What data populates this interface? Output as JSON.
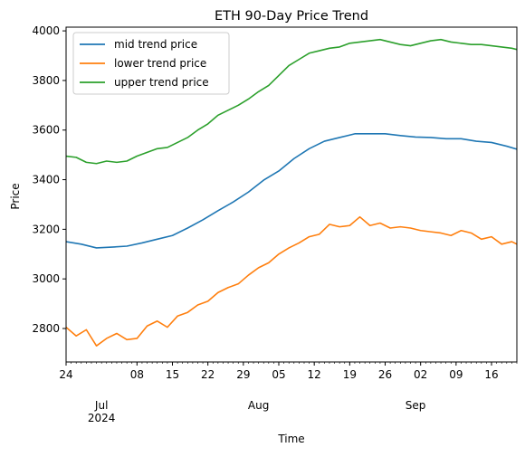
{
  "chart_data": {
    "type": "line",
    "title": "ETH 90-Day Price Trend",
    "xlabel": "Time",
    "ylabel": "Price",
    "x_start": "2024-06-24",
    "x_end": "2024-09-21",
    "xlim": [
      "2024-06-24",
      "2024-09-21"
    ],
    "ylim": [
      2665,
      4015
    ],
    "y_ticks": [
      2800,
      3000,
      3200,
      3400,
      3600,
      3800,
      4000
    ],
    "x_ticks": [
      {
        "date": "2024-06-24",
        "label": "24"
      },
      {
        "date": "2024-07-01",
        "label": "Jul\n2024"
      },
      {
        "date": "2024-07-08",
        "label": "08"
      },
      {
        "date": "2024-07-15",
        "label": "15"
      },
      {
        "date": "2024-07-22",
        "label": "22"
      },
      {
        "date": "2024-07-29",
        "label": "29"
      },
      {
        "date": "2024-08-01",
        "label": "Aug"
      },
      {
        "date": "2024-08-05",
        "label": "05"
      },
      {
        "date": "2024-08-12",
        "label": "12"
      },
      {
        "date": "2024-08-19",
        "label": "19"
      },
      {
        "date": "2024-08-26",
        "label": "26"
      },
      {
        "date": "2024-09-01",
        "label": "Sep"
      },
      {
        "date": "2024-09-02",
        "label": "02"
      },
      {
        "date": "2024-09-09",
        "label": "09"
      },
      {
        "date": "2024-09-16",
        "label": "16"
      }
    ],
    "legend": {
      "position": "top-left"
    },
    "grid": false,
    "series": [
      {
        "name": "mid trend price",
        "color": "#1f77b4",
        "points": [
          [
            "2024-06-24",
            3150
          ],
          [
            "2024-06-27",
            3140
          ],
          [
            "2024-06-30",
            3125
          ],
          [
            "2024-07-03",
            3128
          ],
          [
            "2024-07-06",
            3132
          ],
          [
            "2024-07-09",
            3145
          ],
          [
            "2024-07-12",
            3160
          ],
          [
            "2024-07-15",
            3175
          ],
          [
            "2024-07-18",
            3205
          ],
          [
            "2024-07-21",
            3238
          ],
          [
            "2024-07-24",
            3275
          ],
          [
            "2024-07-27",
            3310
          ],
          [
            "2024-07-30",
            3350
          ],
          [
            "2024-08-02",
            3398
          ],
          [
            "2024-08-05",
            3435
          ],
          [
            "2024-08-08",
            3485
          ],
          [
            "2024-08-11",
            3525
          ],
          [
            "2024-08-14",
            3555
          ],
          [
            "2024-08-17",
            3570
          ],
          [
            "2024-08-20",
            3585
          ],
          [
            "2024-08-23",
            3585
          ],
          [
            "2024-08-26",
            3585
          ],
          [
            "2024-08-29",
            3578
          ],
          [
            "2024-09-01",
            3572
          ],
          [
            "2024-09-04",
            3570
          ],
          [
            "2024-09-07",
            3565
          ],
          [
            "2024-09-10",
            3565
          ],
          [
            "2024-09-13",
            3555
          ],
          [
            "2024-09-16",
            3550
          ],
          [
            "2024-09-19",
            3535
          ],
          [
            "2024-09-21",
            3523
          ]
        ]
      },
      {
        "name": "lower trend price",
        "color": "#ff7f0e",
        "points": [
          [
            "2024-06-24",
            2805
          ],
          [
            "2024-06-26",
            2770
          ],
          [
            "2024-06-28",
            2795
          ],
          [
            "2024-06-30",
            2730
          ],
          [
            "2024-07-02",
            2760
          ],
          [
            "2024-07-04",
            2780
          ],
          [
            "2024-07-06",
            2755
          ],
          [
            "2024-07-08",
            2760
          ],
          [
            "2024-07-10",
            2810
          ],
          [
            "2024-07-12",
            2830
          ],
          [
            "2024-07-14",
            2805
          ],
          [
            "2024-07-16",
            2850
          ],
          [
            "2024-07-18",
            2865
          ],
          [
            "2024-07-20",
            2895
          ],
          [
            "2024-07-22",
            2910
          ],
          [
            "2024-07-24",
            2945
          ],
          [
            "2024-07-26",
            2965
          ],
          [
            "2024-07-28",
            2980
          ],
          [
            "2024-07-30",
            3015
          ],
          [
            "2024-08-01",
            3045
          ],
          [
            "2024-08-03",
            3065
          ],
          [
            "2024-08-05",
            3100
          ],
          [
            "2024-08-07",
            3125
          ],
          [
            "2024-08-09",
            3145
          ],
          [
            "2024-08-11",
            3170
          ],
          [
            "2024-08-13",
            3180
          ],
          [
            "2024-08-15",
            3220
          ],
          [
            "2024-08-17",
            3210
          ],
          [
            "2024-08-19",
            3215
          ],
          [
            "2024-08-21",
            3250
          ],
          [
            "2024-08-23",
            3215
          ],
          [
            "2024-08-25",
            3225
          ],
          [
            "2024-08-27",
            3205
          ],
          [
            "2024-08-29",
            3210
          ],
          [
            "2024-08-31",
            3205
          ],
          [
            "2024-09-02",
            3195
          ],
          [
            "2024-09-04",
            3190
          ],
          [
            "2024-09-06",
            3185
          ],
          [
            "2024-09-08",
            3175
          ],
          [
            "2024-09-10",
            3195
          ],
          [
            "2024-09-12",
            3185
          ],
          [
            "2024-09-14",
            3160
          ],
          [
            "2024-09-16",
            3170
          ],
          [
            "2024-09-18",
            3140
          ],
          [
            "2024-09-20",
            3150
          ],
          [
            "2024-09-21",
            3140
          ]
        ]
      },
      {
        "name": "upper trend price",
        "color": "#2ca02c",
        "points": [
          [
            "2024-06-24",
            3495
          ],
          [
            "2024-06-26",
            3490
          ],
          [
            "2024-06-28",
            3470
          ],
          [
            "2024-06-30",
            3465
          ],
          [
            "2024-07-02",
            3475
          ],
          [
            "2024-07-04",
            3470
          ],
          [
            "2024-07-06",
            3475
          ],
          [
            "2024-07-08",
            3495
          ],
          [
            "2024-07-10",
            3510
          ],
          [
            "2024-07-12",
            3525
          ],
          [
            "2024-07-14",
            3530
          ],
          [
            "2024-07-16",
            3550
          ],
          [
            "2024-07-18",
            3570
          ],
          [
            "2024-07-20",
            3600
          ],
          [
            "2024-07-22",
            3625
          ],
          [
            "2024-07-24",
            3660
          ],
          [
            "2024-07-26",
            3680
          ],
          [
            "2024-07-28",
            3700
          ],
          [
            "2024-07-30",
            3725
          ],
          [
            "2024-08-01",
            3755
          ],
          [
            "2024-08-03",
            3780
          ],
          [
            "2024-08-05",
            3820
          ],
          [
            "2024-08-07",
            3860
          ],
          [
            "2024-08-09",
            3885
          ],
          [
            "2024-08-11",
            3910
          ],
          [
            "2024-08-13",
            3920
          ],
          [
            "2024-08-15",
            3930
          ],
          [
            "2024-08-17",
            3935
          ],
          [
            "2024-08-19",
            3950
          ],
          [
            "2024-08-21",
            3955
          ],
          [
            "2024-08-23",
            3960
          ],
          [
            "2024-08-25",
            3965
          ],
          [
            "2024-08-27",
            3955
          ],
          [
            "2024-08-29",
            3945
          ],
          [
            "2024-08-31",
            3940
          ],
          [
            "2024-09-02",
            3950
          ],
          [
            "2024-09-04",
            3960
          ],
          [
            "2024-09-06",
            3965
          ],
          [
            "2024-09-08",
            3955
          ],
          [
            "2024-09-10",
            3950
          ],
          [
            "2024-09-12",
            3945
          ],
          [
            "2024-09-14",
            3945
          ],
          [
            "2024-09-16",
            3940
          ],
          [
            "2024-09-18",
            3935
          ],
          [
            "2024-09-20",
            3930
          ],
          [
            "2024-09-21",
            3925
          ]
        ]
      }
    ]
  }
}
